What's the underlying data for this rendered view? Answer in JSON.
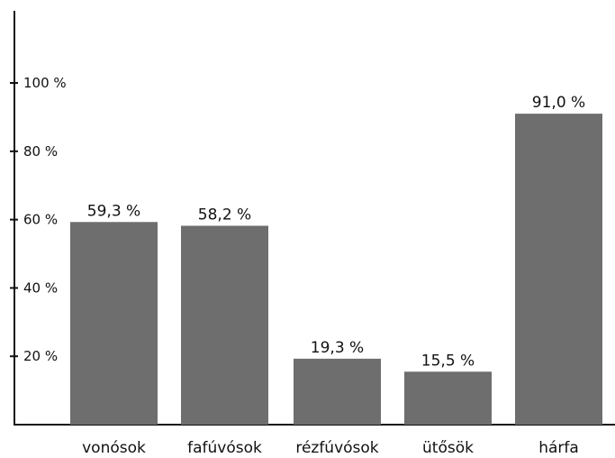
{
  "chart_data": {
    "type": "bar",
    "categories": [
      "vonósok",
      "fafúvósok",
      "rézfúvósok",
      "ütősök",
      "hárfa"
    ],
    "values": [
      59.3,
      58.2,
      19.3,
      15.5,
      91.0
    ],
    "value_labels": [
      "59,3 %",
      "58,2 %",
      "19,3 %",
      "15,5 %",
      "91,0 %"
    ],
    "yticks": [
      20,
      40,
      60,
      80,
      100
    ],
    "ytick_labels": [
      "20 %",
      "40 %",
      "60 %",
      "80 %",
      "100 %"
    ],
    "ylim": [
      0,
      120
    ],
    "title": "",
    "xlabel": "",
    "ylabel": "",
    "grid": false,
    "legend": "none",
    "colors": {
      "bar": "#6e6e6e",
      "axis": "#111111",
      "text": "#111111"
    }
  }
}
